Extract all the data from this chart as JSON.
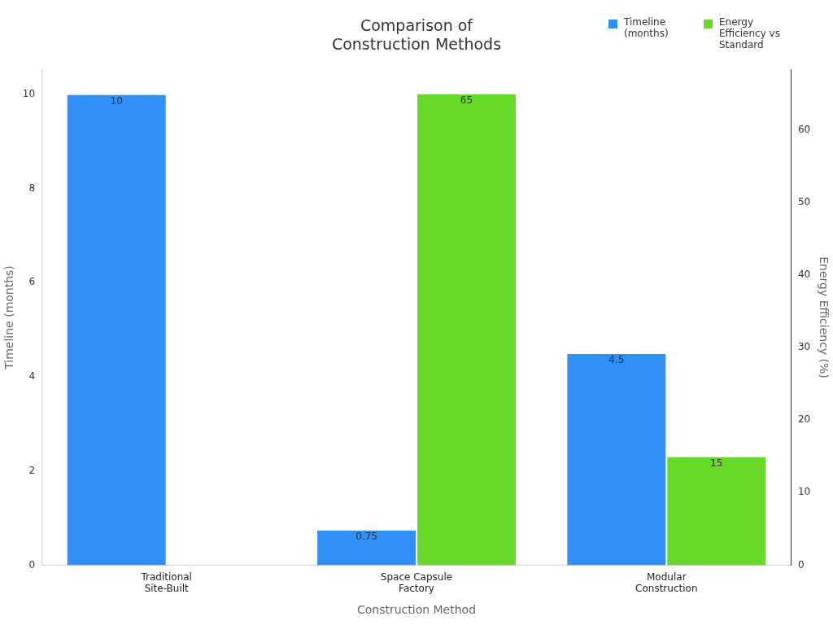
{
  "chart_data": {
    "type": "bar",
    "title": "Comparison of Construction Methods",
    "xlabel": "Construction Method",
    "ylabel": "Timeline (months)",
    "y2label": "Energy Efficiency (%)",
    "categories": [
      "Traditional Site-Built",
      "Space Capsule Factory",
      "Modular Construction"
    ],
    "series": [
      {
        "name": "Timeline (months)",
        "color": "#3090f5",
        "values": [
          10,
          0.75,
          4.5
        ]
      },
      {
        "name": "Energy Efficiency vs Standard",
        "color": "#66d929",
        "values": [
          null,
          65,
          15
        ],
        "axis": "y2"
      }
    ],
    "ylim": [
      0,
      10.52
    ],
    "yticks": [
      0,
      2,
      4,
      6,
      8,
      10
    ],
    "y2lim": [
      0,
      68.3
    ],
    "y2ticks": [
      0,
      10,
      20,
      30,
      40,
      50,
      60
    ],
    "grid": false,
    "legend": "top right",
    "data_labels": true
  }
}
